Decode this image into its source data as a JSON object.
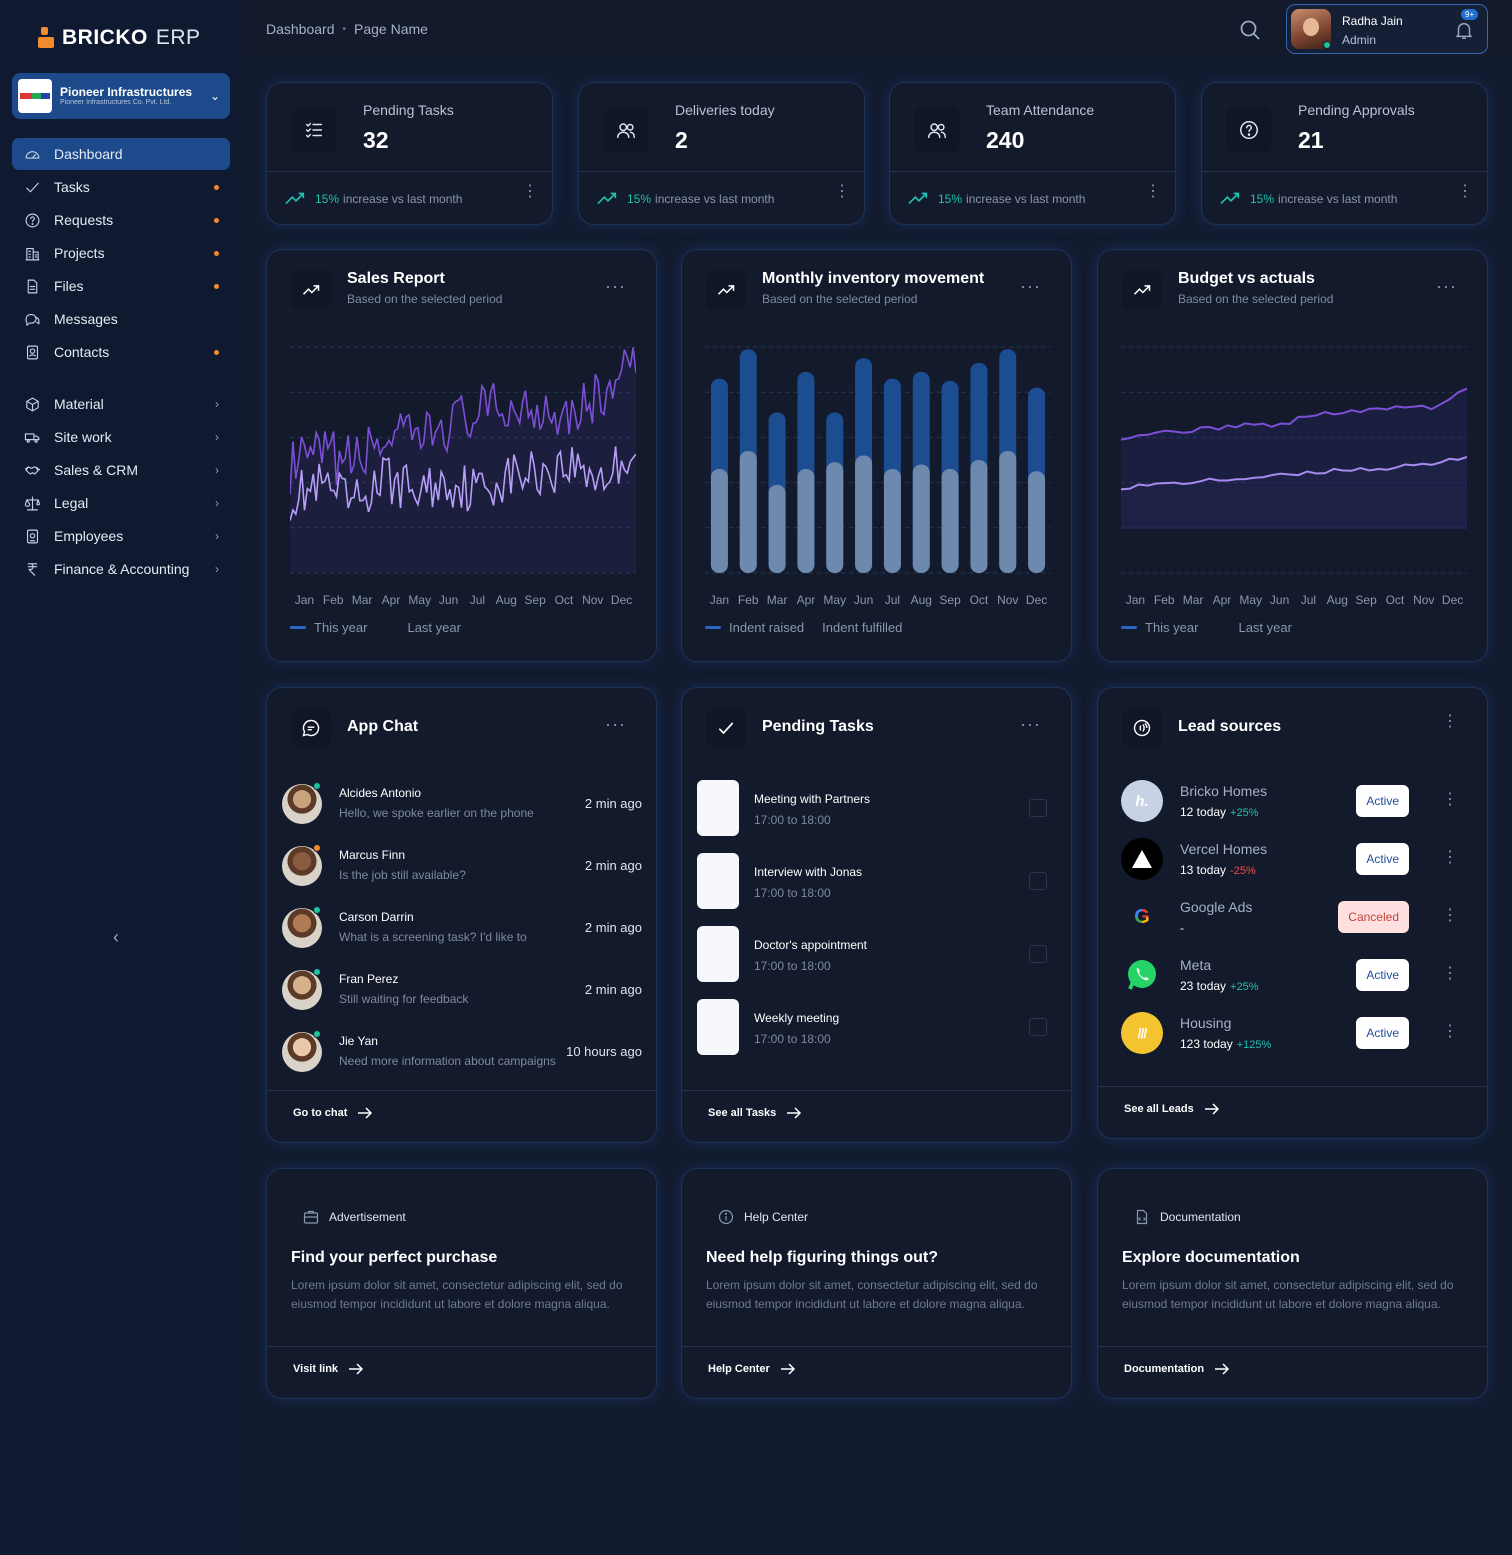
{
  "app": {
    "brand_main": "BRICKO",
    "brand_suffix": "ERP"
  },
  "company": {
    "name": "Pioneer Infrastructures",
    "legal_name": "Pioneer Infrastructures Co. Pvt. Ltd."
  },
  "sidebar": {
    "items": [
      {
        "label": "Dashboard",
        "icon": "dashboard-gauge-icon",
        "active": true
      },
      {
        "label": "Tasks",
        "icon": "check-icon",
        "dot": true
      },
      {
        "label": "Requests",
        "icon": "question-circle-icon",
        "dot": true
      },
      {
        "label": "Projects",
        "icon": "building-icon",
        "dot": true
      },
      {
        "label": "Files",
        "icon": "file-icon",
        "dot": true
      },
      {
        "label": "Messages",
        "icon": "chat-bubbles-icon"
      },
      {
        "label": "Contacts",
        "icon": "contact-card-icon",
        "dot": true
      },
      {
        "label": "Material",
        "icon": "box-icon",
        "chevron": true
      },
      {
        "label": "Site work",
        "icon": "truck-icon",
        "chevron": true
      },
      {
        "label": "Sales & CRM",
        "icon": "handshake-icon",
        "chevron": true
      },
      {
        "label": "Legal",
        "icon": "scales-icon",
        "chevron": true
      },
      {
        "label": "Employees",
        "icon": "id-badge-icon",
        "chevron": true
      },
      {
        "label": "Finance & Accounting",
        "icon": "rupee-icon",
        "chevron": true
      }
    ]
  },
  "header": {
    "breadcrumb": [
      "Dashboard",
      "Page Name"
    ],
    "user": {
      "name": "Radha Jain",
      "role": "Admin"
    },
    "notifications": "9+"
  },
  "stats": [
    {
      "label": "Pending Tasks",
      "value": "32",
      "trend_pct": "15%",
      "trend_text": "increase vs last month",
      "icon": "checklist-icon"
    },
    {
      "label": "Deliveries today",
      "value": "2",
      "trend_pct": "15%",
      "trend_text": "increase vs last month",
      "icon": "users-icon"
    },
    {
      "label": "Team Attendance",
      "value": "240",
      "trend_pct": "15%",
      "trend_text": "increase vs last month",
      "icon": "users-icon"
    },
    {
      "label": "Pending Approvals",
      "value": "21",
      "trend_pct": "15%",
      "trend_text": "increase vs last month",
      "icon": "question-circle-icon"
    }
  ],
  "charts": {
    "sales": {
      "title": "Sales Report",
      "subtitle": "Based on the selected period",
      "legend": [
        "This year",
        "Last year"
      ]
    },
    "inventory": {
      "title": "Monthly inventory movement",
      "subtitle": "Based on the selected period",
      "legend": [
        "Indent raised",
        "Indent fulfilled"
      ]
    },
    "budget": {
      "title": "Budget vs actuals",
      "subtitle": "Based on the selected period",
      "legend": [
        "This year",
        "Last year"
      ]
    }
  },
  "chart_data": [
    {
      "type": "line",
      "title": "Sales Report",
      "categories": [
        "Jan",
        "Feb",
        "Mar",
        "Apr",
        "May",
        "Jun",
        "Jul",
        "Aug",
        "Sep",
        "Oct",
        "Nov",
        "Dec"
      ],
      "ylim": [
        0,
        100
      ],
      "grid": true,
      "legend": "bottom-left",
      "series": [
        {
          "name": "This year",
          "values": [
            46,
            52,
            49,
            60,
            58,
            66,
            71,
            73,
            74,
            72,
            79,
            94
          ],
          "color": "#7d4fd6"
        },
        {
          "name": "Last year",
          "values": [
            34,
            38,
            30,
            42,
            36,
            40,
            37,
            43,
            45,
            48,
            42,
            56
          ],
          "color": "#b79ef7"
        }
      ]
    },
    {
      "type": "bar",
      "title": "Monthly inventory movement",
      "categories": [
        "Jan",
        "Feb",
        "Mar",
        "Apr",
        "May",
        "Jun",
        "Jul",
        "Aug",
        "Sep",
        "Oct",
        "Nov",
        "Dec"
      ],
      "ylim": [
        0,
        100
      ],
      "grid": true,
      "legend": "bottom-left",
      "series": [
        {
          "name": "Indent raised",
          "values": [
            86,
            99,
            71,
            89,
            71,
            95,
            86,
            89,
            85,
            93,
            99,
            82
          ],
          "color": "#1c4d91"
        },
        {
          "name": "Indent fulfilled",
          "values": [
            46,
            54,
            39,
            46,
            49,
            52,
            46,
            48,
            46,
            50,
            54,
            45
          ],
          "color": "#6d89ad"
        }
      ]
    },
    {
      "type": "area",
      "title": "Budget vs actuals",
      "categories": [
        "Jan",
        "Feb",
        "Mar",
        "Apr",
        "May",
        "Jun",
        "Jul",
        "Aug",
        "Sep",
        "Oct",
        "Nov",
        "Dec"
      ],
      "ylim": [
        0,
        100
      ],
      "grid": true,
      "legend": "bottom-left",
      "series": [
        {
          "name": "This year",
          "values": [
            60,
            62,
            63,
            64,
            66,
            65,
            70,
            71,
            72,
            74,
            73,
            82
          ],
          "color": "#7d4fd6"
        },
        {
          "name": "Last year",
          "values": [
            38,
            39,
            40,
            41,
            42,
            43,
            44,
            46,
            46,
            47,
            48,
            52
          ],
          "color": "#a78bf0"
        }
      ]
    }
  ],
  "app_chat": {
    "title": "App Chat",
    "footer": "Go to chat",
    "messages": [
      {
        "name": "Alcides Antonio",
        "text": "Hello, we spoke earlier on the phone",
        "time": "2 min ago",
        "status": "#1fc39a"
      },
      {
        "name": "Marcus Finn",
        "text": "Is the job still available?",
        "time": "2 min ago",
        "status": "#f28b2e"
      },
      {
        "name": "Carson Darrin",
        "text": "What is a screening task? I'd like to",
        "time": "2 min ago",
        "status": "#1fc39a"
      },
      {
        "name": "Fran Perez",
        "text": "Still waiting for feedback",
        "time": "2 min ago",
        "status": "#1fc39a"
      },
      {
        "name": "Jie Yan",
        "text": "Need more information about campaigns",
        "time": "10 hours ago",
        "status": "#1fc39a"
      }
    ]
  },
  "pending_tasks": {
    "title": "Pending Tasks",
    "footer": "See all Tasks",
    "items": [
      {
        "name": "Meeting with Partners",
        "time": "17:00 to 18:00"
      },
      {
        "name": "Interview with Jonas",
        "time": "17:00 to 18:00"
      },
      {
        "name": "Doctor's appointment",
        "time": "17:00 to 18:00"
      },
      {
        "name": "Weekly meeting",
        "time": "17:00 to 18:00"
      }
    ]
  },
  "lead_sources": {
    "title": "Lead sources",
    "footer": "See all Leads",
    "items": [
      {
        "name": "Bricko Homes",
        "count": "12 today",
        "change": "+25%",
        "dir": "pos",
        "status": "Active",
        "icon": "bricko-homes-logo-icon"
      },
      {
        "name": "Vercel Homes",
        "count": "13 today",
        "change": "-25%",
        "dir": "neg",
        "status": "Active",
        "icon": "vercel-triangle-icon"
      },
      {
        "name": "Google Ads",
        "count": "-",
        "change": "",
        "dir": "pos",
        "status": "Canceled",
        "icon": "google-icon"
      },
      {
        "name": "Meta",
        "count": "23 today",
        "change": "+25%",
        "dir": "pos",
        "status": "Active",
        "icon": "whatsapp-icon"
      },
      {
        "name": "Housing",
        "count": "123 today",
        "change": "+125%",
        "dir": "pos",
        "status": "Active",
        "icon": "housing-logo-icon"
      }
    ]
  },
  "info_cards": [
    {
      "tag": "Advertisement",
      "heading": "Find your perfect purchase",
      "body": "Lorem ipsum dolor sit amet, consectetur adipiscing elit, sed do eiusmod tempor incididunt ut labore et dolore magna aliqua.",
      "link": "Visit link"
    },
    {
      "tag": "Help Center",
      "heading": "Need help figuring things out?",
      "body": "Lorem ipsum dolor sit amet, consectetur adipiscing elit, sed do eiusmod tempor incididunt ut labore et dolore magna aliqua.",
      "link": "Help Center"
    },
    {
      "tag": "Documentation",
      "heading": "Explore documentation",
      "body": "Lorem ipsum dolor sit amet, consectetur adipiscing elit, sed do eiusmod tempor incididunt ut labore et dolore magna aliqua.",
      "link": "Documentation"
    }
  ]
}
